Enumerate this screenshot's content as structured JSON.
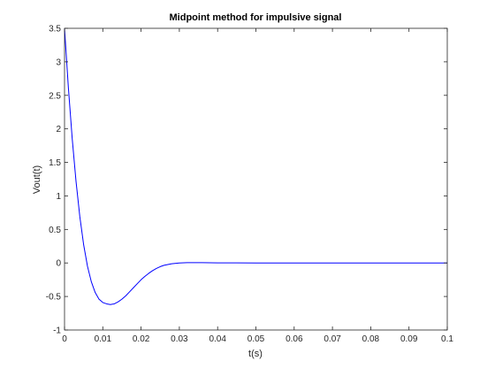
{
  "chart_data": {
    "type": "line",
    "title": "Midpoint method for impulsive signal",
    "xlabel": "t(s)",
    "ylabel": "Vout(t)",
    "xlim": [
      0,
      0.1
    ],
    "ylim": [
      -1,
      3.5
    ],
    "grid": false,
    "box": true,
    "xticks": [
      0,
      0.01,
      0.02,
      0.03,
      0.04,
      0.05,
      0.06,
      0.07,
      0.08,
      0.09,
      0.1
    ],
    "xtick_labels": [
      "0",
      "0.01",
      "0.02",
      "0.03",
      "0.04",
      "0.05",
      "0.06",
      "0.07",
      "0.08",
      "0.09",
      "0.1"
    ],
    "yticks": [
      -1,
      -0.5,
      0,
      0.5,
      1,
      1.5,
      2,
      2.5,
      3,
      3.5
    ],
    "ytick_labels": [
      "-1",
      "-0.5",
      "0",
      "0.5",
      "1",
      "1.5",
      "2",
      "2.5",
      "3",
      "3.5"
    ],
    "series": [
      {
        "color": "#0000ff",
        "x": [
          0,
          0.001,
          0.002,
          0.003,
          0.004,
          0.005,
          0.006,
          0.007,
          0.008,
          0.009,
          0.01,
          0.011,
          0.012,
          0.013,
          0.014,
          0.015,
          0.016,
          0.017,
          0.018,
          0.019,
          0.02,
          0.021,
          0.022,
          0.023,
          0.024,
          0.025,
          0.026,
          0.028,
          0.03,
          0.032,
          0.034,
          0.036,
          0.038,
          0.04,
          0.045,
          0.05,
          0.06,
          0.07,
          0.08,
          0.09,
          0.1
        ],
        "y": [
          3.5,
          2.62,
          1.86,
          1.22,
          0.69,
          0.27,
          -0.05,
          -0.28,
          -0.44,
          -0.54,
          -0.59,
          -0.61,
          -0.62,
          -0.61,
          -0.58,
          -0.54,
          -0.49,
          -0.43,
          -0.37,
          -0.31,
          -0.25,
          -0.2,
          -0.155,
          -0.115,
          -0.082,
          -0.055,
          -0.035,
          -0.012,
          0.0,
          0.004,
          0.005,
          0.004,
          0.003,
          0.002,
          0.001,
          0.0,
          0.0,
          0.0,
          0.0,
          0.0,
          0.0
        ]
      }
    ]
  }
}
